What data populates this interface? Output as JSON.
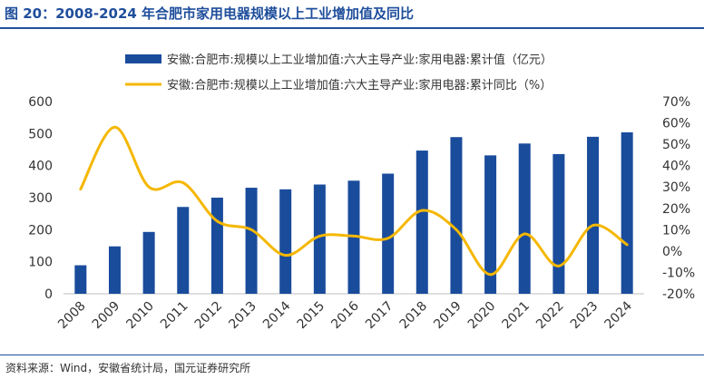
{
  "figure": {
    "title": "图 20：2008-2024 年合肥市家用电器规模以上工业增加值及同比",
    "source": "资料来源：Wind，安徽省统计局，国元证券研究所"
  },
  "colors": {
    "bar": "#1a4c9c",
    "line": "#f5b700",
    "title": "#1f4e9c",
    "text": "#333333"
  },
  "chart_data": {
    "type": "bar",
    "categories": [
      "2008",
      "2009",
      "2010",
      "2011",
      "2012",
      "2013",
      "2014",
      "2015",
      "2016",
      "2017",
      "2018",
      "2019",
      "2020",
      "2021",
      "2022",
      "2023",
      "2024"
    ],
    "series": [
      {
        "name": "安徽:合肥市:规模以上工业增加值:六大主导产业:家用电器:累计值（亿元）",
        "type": "bar",
        "axis": "left",
        "values": [
          89,
          148,
          193,
          271,
          300,
          331,
          326,
          341,
          353,
          375,
          447,
          489,
          432,
          469,
          436,
          490,
          504
        ]
      },
      {
        "name": "安徽:合肥市:规模以上工业增加值:六大主导产业:家用电器:累计同比（%）",
        "type": "line",
        "axis": "right",
        "values": [
          29,
          58,
          30,
          32,
          14,
          10,
          -2,
          7,
          7,
          6,
          19,
          10,
          -11,
          8,
          -7,
          12,
          3
        ]
      }
    ],
    "y_left": {
      "min": 0,
      "max": 600,
      "ticks": [
        "0",
        "100",
        "200",
        "300",
        "400",
        "500",
        "600"
      ]
    },
    "y_right": {
      "min": -20,
      "max": 70,
      "ticks": [
        "-20%",
        "-10%",
        "0%",
        "10%",
        "20%",
        "30%",
        "40%",
        "50%",
        "60%",
        "70%"
      ]
    },
    "grid": false,
    "legend_position": "top"
  }
}
